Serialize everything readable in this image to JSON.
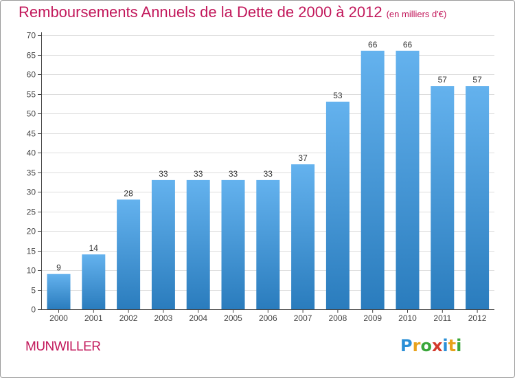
{
  "title": {
    "main": "Remboursements Annuels de la Dette de 2000 à 2012",
    "unit": "(en milliers d'€)"
  },
  "town": "MUNWILLER",
  "logo": {
    "letters": [
      "P",
      "r",
      "o",
      "x",
      "i",
      "t",
      "i"
    ],
    "colors": [
      "#2a8fd6",
      "#e8a21c",
      "#3aa63a",
      "#d33a2c",
      "#2a8fd6",
      "#e8a21c",
      "#3aa63a"
    ]
  },
  "colors": {
    "title": "#c2185b",
    "bar_top": "#64b2ee",
    "bar_bottom": "#2a7cbd",
    "axis": "#444444",
    "grid": "#dddddd"
  },
  "chart_data": {
    "type": "bar",
    "categories": [
      "2000",
      "2001",
      "2002",
      "2003",
      "2004",
      "2005",
      "2006",
      "2007",
      "2008",
      "2009",
      "2010",
      "2011",
      "2012"
    ],
    "values": [
      9,
      14,
      28,
      33,
      33,
      33,
      33,
      37,
      53,
      66,
      66,
      57,
      57
    ],
    "data_labels": [
      "9",
      "14",
      "28",
      "33",
      "33",
      "33",
      "33",
      "37",
      "53",
      "66",
      "66",
      "57",
      "57"
    ],
    "ylim": [
      0,
      70
    ],
    "yticks": [
      "0",
      "5",
      "10",
      "15",
      "20",
      "25",
      "30",
      "35",
      "40",
      "45",
      "50",
      "55",
      "60",
      "65",
      "70"
    ],
    "grid": true,
    "legend": "none"
  }
}
